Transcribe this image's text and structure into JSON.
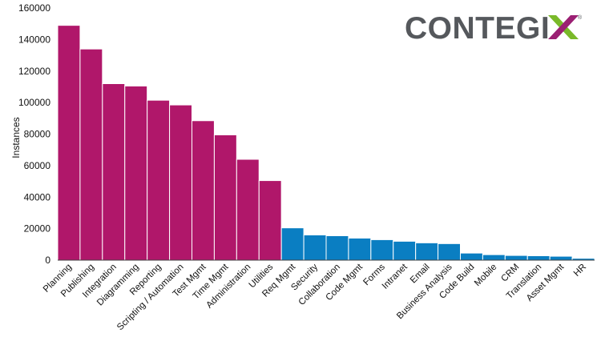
{
  "logo": {
    "text": "CONTEGI",
    "registered": "®",
    "accent_colors": [
      "#7ab929",
      "#9b1f73"
    ],
    "text_color": "#55585c"
  },
  "chart_data": {
    "type": "bar",
    "title": "",
    "xlabel": "",
    "ylabel": "Instances",
    "ylim": [
      0,
      160000
    ],
    "yticks": [
      0,
      20000,
      40000,
      60000,
      80000,
      100000,
      120000,
      140000,
      160000
    ],
    "grid": false,
    "colors": {
      "top_group": "#b0176a",
      "other": "#0a7ec2"
    },
    "categories": [
      "Planning",
      "Publishing",
      "Integration",
      "Diagramming",
      "Reporting",
      "Scripting / Automation",
      "Test Mgmt",
      "Time Mgmt",
      "Administration",
      "Utilities",
      "Req Mgmt",
      "Security",
      "Collaboration",
      "Code Mgmt",
      "Forms",
      "Intranet",
      "Email",
      "Business Analysis",
      "Code Build",
      "Mobile",
      "CRM",
      "Translation",
      "Asset Mgmt",
      "HR"
    ],
    "values": [
      149000,
      134000,
      112000,
      110500,
      101500,
      98500,
      88500,
      79500,
      64000,
      50500,
      20500,
      16000,
      15500,
      14000,
      13000,
      12000,
      11000,
      10500,
      4500,
      3500,
      3000,
      2800,
      2500,
      1200
    ],
    "highlight_count": 10
  }
}
